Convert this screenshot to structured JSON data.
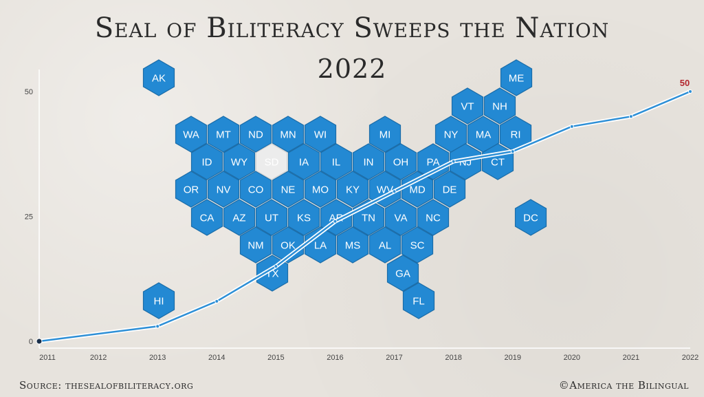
{
  "title": "Seal of Biliteracy Sweeps the Nation",
  "subtitle": "2022",
  "source": "Source: thesealofbiliteracy.org",
  "credit": "©America the Bilingual",
  "colors": {
    "hex_active": "#2389d3",
    "hex_inactive": "#ececec",
    "line": "#2d8fd6",
    "end_label": "#b3262d",
    "axis": "#444444"
  },
  "hexmap": {
    "active_states": [
      "AK",
      "ME",
      "VT",
      "NH",
      "WA",
      "MT",
      "ND",
      "MN",
      "WI",
      "MI",
      "NY",
      "MA",
      "RI",
      "ID",
      "WY",
      "IA",
      "IL",
      "IN",
      "OH",
      "PA",
      "NJ",
      "CT",
      "OR",
      "NV",
      "CO",
      "NE",
      "MO",
      "KY",
      "WV",
      "MD",
      "DE",
      "CA",
      "AZ",
      "UT",
      "KS",
      "AR",
      "TN",
      "VA",
      "NC",
      "DC",
      "NM",
      "OK",
      "LA",
      "MS",
      "AL",
      "SC",
      "TX",
      "GA",
      "HI",
      "FL"
    ],
    "inactive_states": [
      "SD"
    ]
  },
  "chart_data": {
    "type": "line",
    "title": "Seal of Biliteracy Sweeps the Nation",
    "subtitle": "2022",
    "x_ticks": [
      "2011",
      "2012",
      "2013",
      "2014",
      "2015",
      "2016",
      "2017",
      "2018",
      "2019",
      "2020",
      "2021",
      "2022"
    ],
    "y_ticks": [
      "0",
      "25",
      "50"
    ],
    "ylim": [
      0,
      50
    ],
    "series": [
      {
        "x": [
          2011,
          2013,
          2014,
          2015,
          2016,
          2017,
          2018,
          2019,
          2020,
          2021,
          2022
        ],
        "values": [
          0,
          3,
          8,
          15,
          24,
          30,
          36,
          38,
          43,
          45,
          50
        ]
      }
    ],
    "end_label": "50",
    "grid": false
  }
}
